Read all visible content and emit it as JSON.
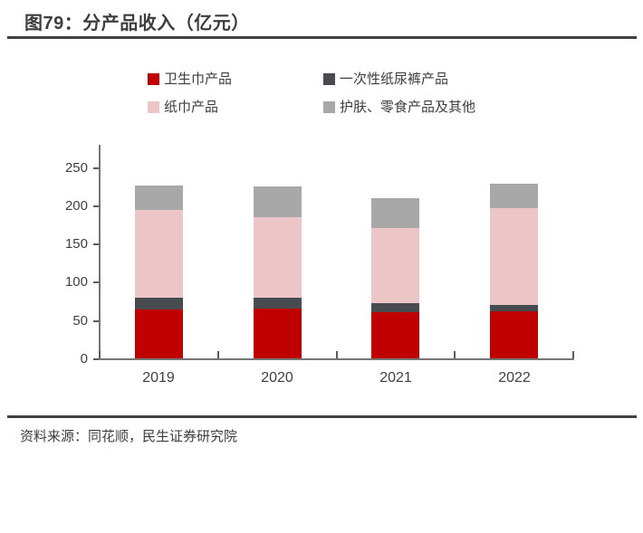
{
  "title": "图79：分产品收入（亿元）",
  "source": "资料来源：同花顺，民生证券研究院",
  "colors": {
    "accent_red": "#c00000",
    "dark_gray": "#484b50",
    "light_pink": "#ecc6c7",
    "mid_gray": "#a8a8a8",
    "rule": "#414143",
    "axis": "#767676"
  },
  "chart_data": {
    "type": "bar",
    "stacked": true,
    "title": "图79：分产品收入（亿元）",
    "xlabel": "",
    "ylabel": "",
    "categories": [
      "2019",
      "2020",
      "2021",
      "2022"
    ],
    "series": [
      {
        "name": "卫生巾产品",
        "color": "#c00000",
        "values": [
          64,
          65,
          60,
          61
        ]
      },
      {
        "name": "一次性纸尿裤产品",
        "color": "#484b50",
        "values": [
          15,
          14,
          12,
          9
        ]
      },
      {
        "name": "纸巾产品",
        "color": "#ecc6c7",
        "values": [
          115,
          106,
          98,
          126
        ]
      },
      {
        "name": "护肤、零食产品及其他",
        "color": "#a8a8a8",
        "values": [
          32,
          40,
          39,
          32
        ]
      }
    ],
    "totals": [
      226,
      225,
      209,
      228
    ],
    "ylim": [
      0,
      250
    ],
    "yticks": [
      0,
      50,
      100,
      150,
      200,
      250
    ],
    "grid": false,
    "legend_position": "top"
  }
}
